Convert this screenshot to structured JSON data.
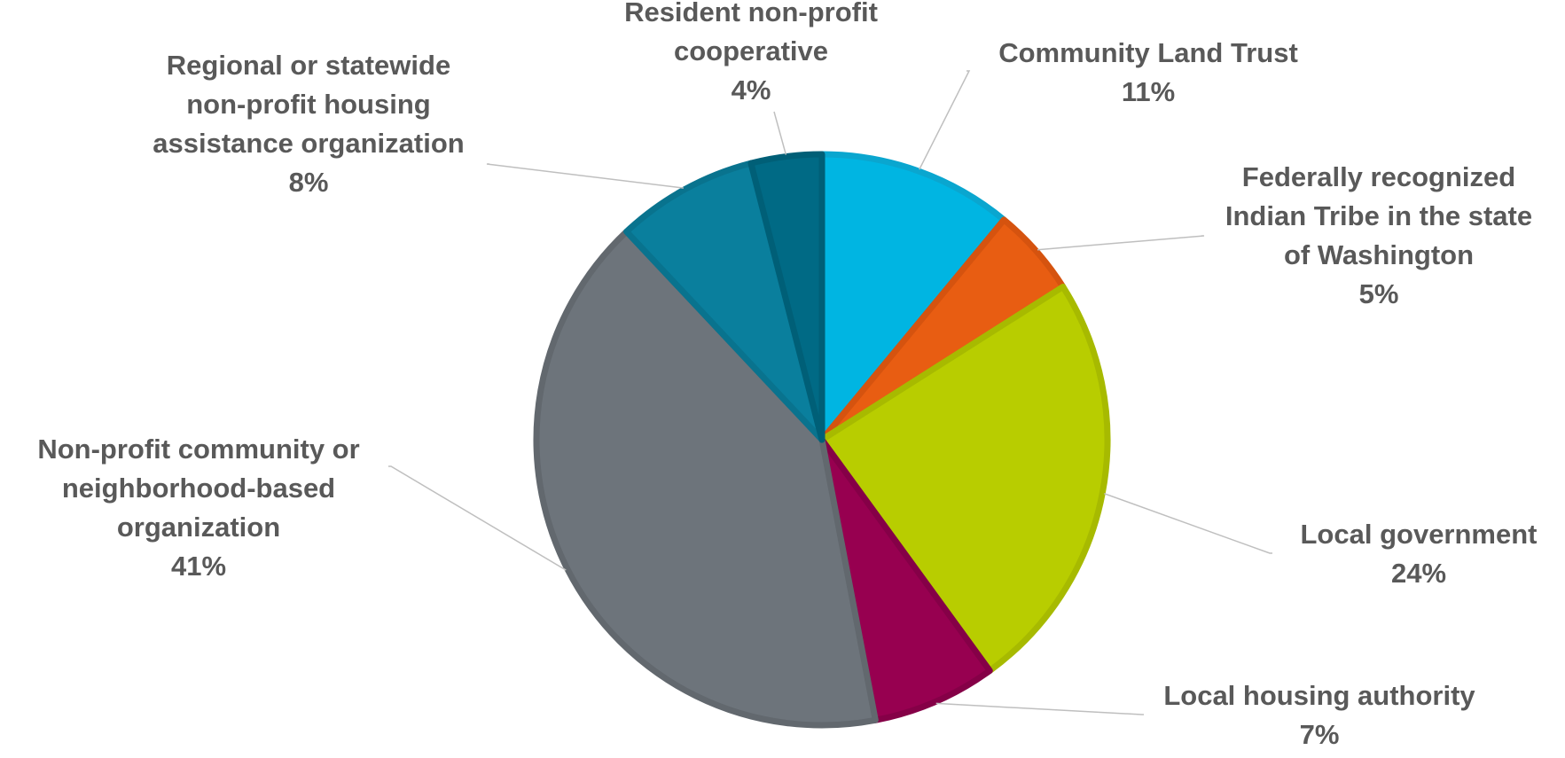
{
  "chart_data": {
    "type": "pie",
    "start_angle_deg": 0,
    "direction": "clockwise",
    "slices": [
      {
        "label": [
          "Community Land Trust"
        ],
        "percent_label": "11%",
        "value": 11,
        "color": "#00b5e2",
        "edge_color": "#0aa6cf"
      },
      {
        "label": [
          "Federally recognized",
          "Indian Tribe in the state",
          "of Washington"
        ],
        "percent_label": "5%",
        "value": 5,
        "color": "#e85d12",
        "edge_color": "#d5530f"
      },
      {
        "label": [
          "Local government"
        ],
        "percent_label": "24%",
        "value": 24,
        "color": "#b8cd00",
        "edge_color": "#a7ba00"
      },
      {
        "label": [
          "Local housing authority"
        ],
        "percent_label": "7%",
        "value": 7,
        "color": "#970050",
        "edge_color": "#850047"
      },
      {
        "label": [
          "Non-profit community or",
          "neighborhood-based",
          "organization"
        ],
        "percent_label": "41%",
        "value": 41,
        "color": "#6d747b",
        "edge_color": "#62686e"
      },
      {
        "label": [
          "Regional or statewide",
          "non-profit housing",
          "assistance organization"
        ],
        "percent_label": "8%",
        "value": 8,
        "color": "#0a7f9d",
        "edge_color": "#09738e"
      },
      {
        "label": [
          "Resident non-profit",
          "cooperative"
        ],
        "percent_label": "4%",
        "value": 4,
        "color": "#006a85",
        "edge_color": "#005f77"
      }
    ]
  }
}
